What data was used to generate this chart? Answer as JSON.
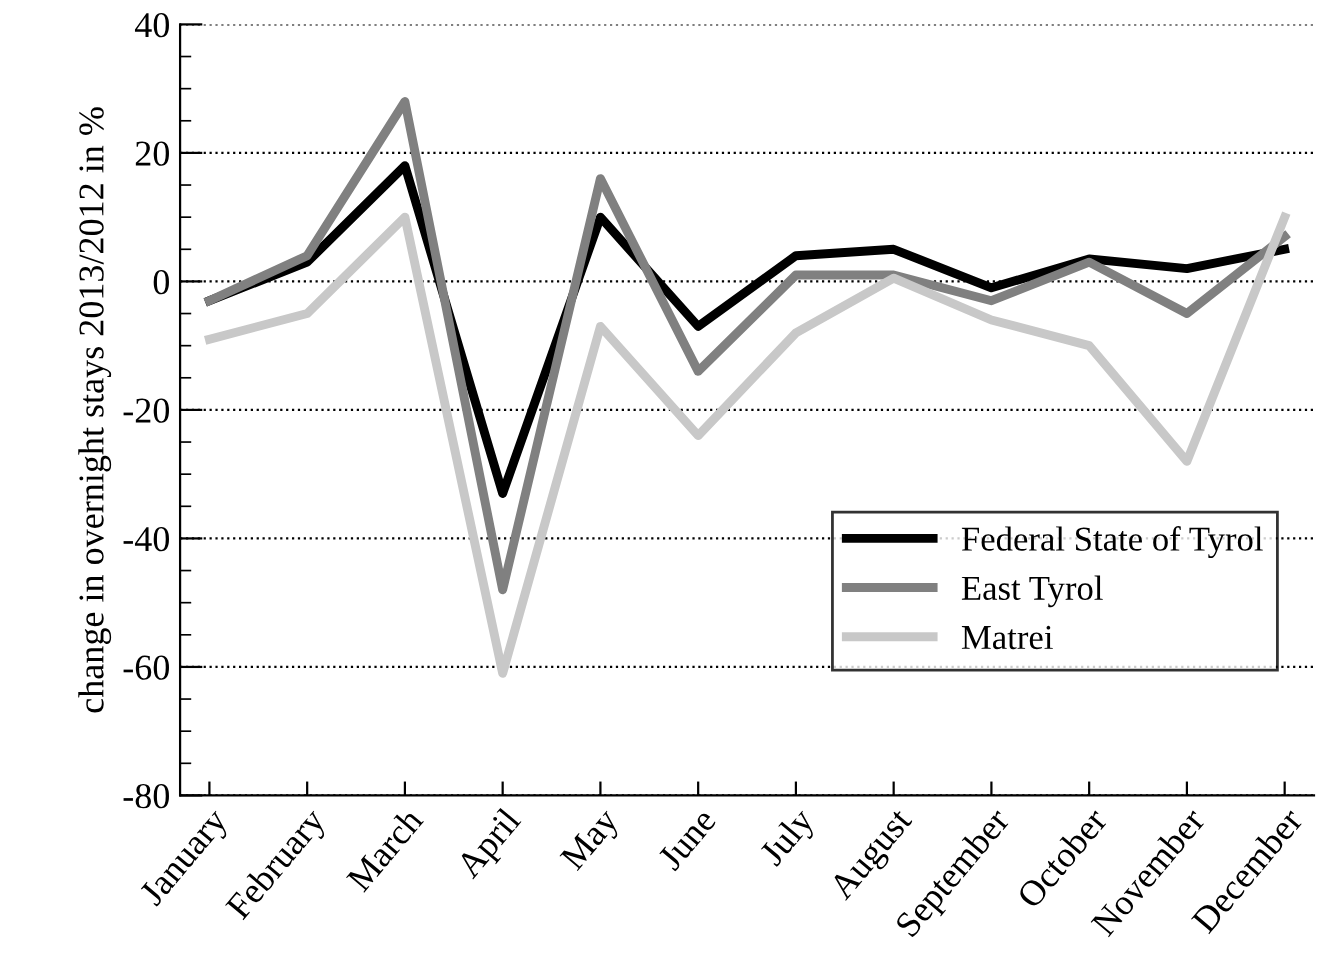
{
  "chart_data": {
    "type": "line",
    "ylabel": "change in overnight stays 2013/2012 in %",
    "categories": [
      "January",
      "February",
      "March",
      "April",
      "May",
      "June",
      "July",
      "August",
      "September",
      "October",
      "November",
      "December"
    ],
    "series": [
      {
        "name": "Federal State of Tyrol",
        "color": "#000000",
        "values": [
          -3,
          3,
          18,
          -33,
          10,
          -7,
          4,
          5,
          -1,
          3.5,
          2,
          5
        ]
      },
      {
        "name": "East Tyrol",
        "color": "#808080",
        "values": [
          -3,
          4,
          28,
          -48,
          16,
          -14,
          1,
          1,
          -3,
          3,
          -5,
          7
        ]
      },
      {
        "name": "Matrei",
        "color": "#c8c8c8",
        "values": [
          -9,
          -5,
          10,
          -61,
          -7,
          -24,
          -8,
          0.5,
          -6,
          -10,
          -28,
          10
        ]
      }
    ],
    "ylim": [
      -80,
      40
    ],
    "yticks": [
      -80,
      -60,
      -40,
      -20,
      0,
      20,
      40
    ],
    "grid": "y",
    "legend": "bottom right",
    "line_style": "solid",
    "marker": "none"
  }
}
